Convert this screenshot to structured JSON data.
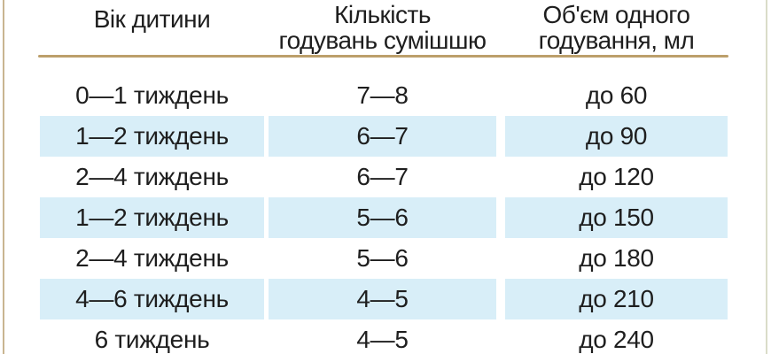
{
  "table": {
    "columns": [
      {
        "title": "Вік дитини"
      },
      {
        "title": "Кількість\nгодувань сумішшю"
      },
      {
        "title": "Об'єм одного\nгодування, мл"
      }
    ],
    "rows": [
      {
        "age": "0—1 тиждень",
        "feedings": "7—8",
        "volume": "до 60"
      },
      {
        "age": "1—2 тиждень",
        "feedings": "6—7",
        "volume": "до 90"
      },
      {
        "age": "2—4 тиждень",
        "feedings": "6—7",
        "volume": "до 120"
      },
      {
        "age": "1—2 тиждень",
        "feedings": "5—6",
        "volume": "до 150"
      },
      {
        "age": "2—4 тиждень",
        "feedings": "5—6",
        "volume": "до 180"
      },
      {
        "age": "4—6 тиждень",
        "feedings": "4—5",
        "volume": "до 210"
      },
      {
        "age": "6 тиждень",
        "feedings": "4—5",
        "volume": "до 240"
      }
    ]
  },
  "colors": {
    "row_highlight": "#D8EEF8",
    "header_rule": "#BC9F6B",
    "left_border": "#C9B591",
    "right_border": "#DADCC9",
    "text": "#1E1E1E",
    "background": "#FFFFFF"
  }
}
